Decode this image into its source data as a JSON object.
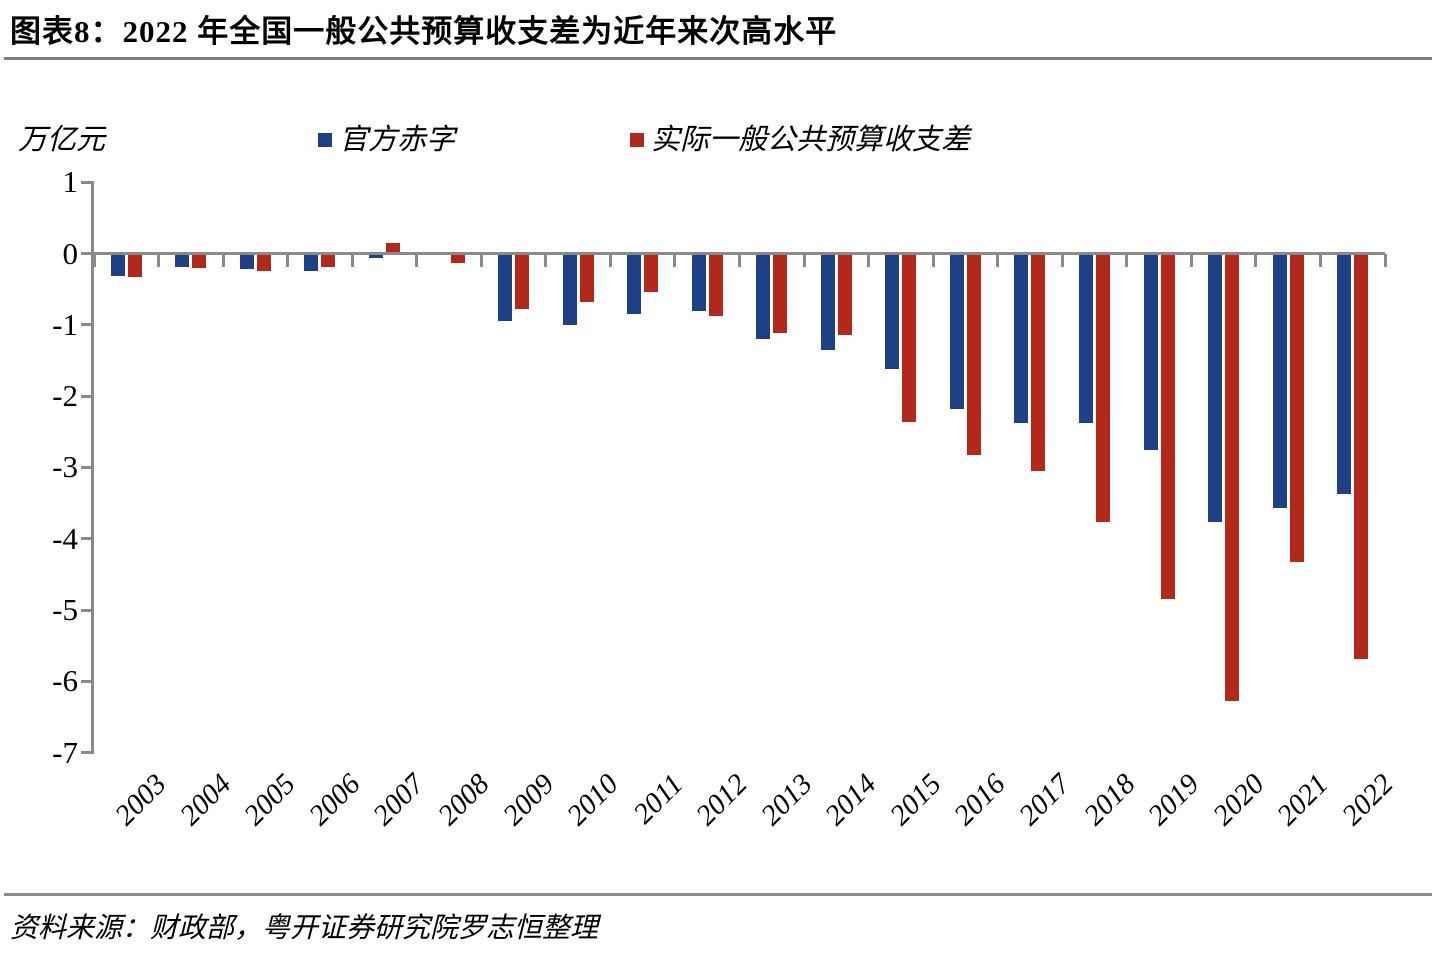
{
  "page": {
    "title": "图表8：2022 年全国一般公共预算收支差为近年来次高水平",
    "source": "资料来源：财政部，粤开证券研究院罗志恒整理"
  },
  "colors": {
    "official_deficit_blue": "#1E4086",
    "actual_gap_red": "#B2291B",
    "axis_gray": "#8a8a8a",
    "title_rule_gray": "#7f7f7f"
  },
  "chart_data": {
    "type": "bar",
    "title": "2022 年全国一般公共预算收支差为近年来次高水平",
    "unit_label": "万亿元",
    "xlabel": "",
    "ylabel": "万亿元",
    "ylim": [
      -7,
      1
    ],
    "y_ticks": [
      1,
      0,
      -1,
      -2,
      -3,
      -4,
      -5,
      -6,
      -7
    ],
    "grid": false,
    "legend_position": "top",
    "categories": [
      "2003",
      "2004",
      "2005",
      "2006",
      "2007",
      "2008",
      "2009",
      "2010",
      "2011",
      "2012",
      "2013",
      "2014",
      "2015",
      "2016",
      "2017",
      "2018",
      "2019",
      "2020",
      "2021",
      "2022"
    ],
    "series": [
      {
        "name": "官方赤字",
        "color": "#1E4086",
        "values": [
          -0.31,
          -0.19,
          -0.22,
          -0.24,
          -0.06,
          -0.02,
          -0.95,
          -1.0,
          -0.85,
          -0.8,
          -1.2,
          -1.35,
          -1.62,
          -2.18,
          -2.38,
          -2.38,
          -2.76,
          -3.76,
          -3.57,
          -3.37
        ]
      },
      {
        "name": "实际一般公共预算收支差",
        "color": "#B2291B",
        "values": [
          -0.33,
          -0.21,
          -0.24,
          -0.19,
          0.15,
          -0.13,
          -0.78,
          -0.68,
          -0.54,
          -0.87,
          -1.12,
          -1.15,
          -2.36,
          -2.83,
          -3.05,
          -3.76,
          -4.85,
          -6.27,
          -4.32,
          -5.69
        ]
      }
    ]
  }
}
